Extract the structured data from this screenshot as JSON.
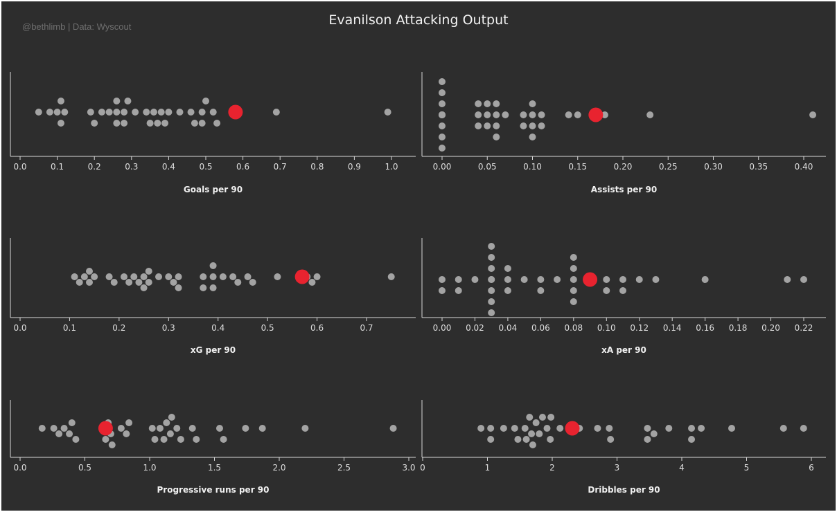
{
  "title": "Evanilson Attacking Output",
  "credit": "@bethlimb | Data: Wyscout",
  "colors": {
    "background": "#2d2d2d",
    "player_point": "#e8232f",
    "other_points": "#a3a3a3",
    "axis": "#d9d9d9",
    "text": "#f0f0f0"
  },
  "chart_data": [
    {
      "type": "scatter",
      "subtype": "beeswarm",
      "xlabel": "Goals per 90",
      "xlim": [
        0.0,
        1.0
      ],
      "ticks": [
        0.0,
        0.1,
        0.2,
        0.3,
        0.4,
        0.5,
        0.6,
        0.7,
        0.8,
        0.9,
        1.0
      ],
      "decimals": 1,
      "highlight": 0.58,
      "values": [
        0.05,
        0.08,
        0.1,
        0.11,
        0.11,
        0.12,
        0.19,
        0.2,
        0.22,
        0.24,
        0.26,
        0.26,
        0.26,
        0.28,
        0.28,
        0.29,
        0.31,
        0.34,
        0.35,
        0.36,
        0.37,
        0.38,
        0.39,
        0.4,
        0.43,
        0.46,
        0.47,
        0.49,
        0.49,
        0.5,
        0.52,
        0.53,
        0.69,
        0.99
      ]
    },
    {
      "type": "scatter",
      "subtype": "beeswarm",
      "xlabel": "Assists per 90",
      "xlim": [
        -0.015,
        0.43
      ],
      "ticks": [
        0.0,
        0.05,
        0.1,
        0.15,
        0.2,
        0.25,
        0.3,
        0.35,
        0.4
      ],
      "decimals": 2,
      "highlight": 0.17,
      "values": [
        0,
        0,
        0,
        0,
        0,
        0,
        0,
        0,
        0,
        0,
        0,
        0,
        0.04,
        0.04,
        0.04,
        0.05,
        0.05,
        0.05,
        0.06,
        0.06,
        0.06,
        0.06,
        0.07,
        0.09,
        0.09,
        0.1,
        0.1,
        0.1,
        0.1,
        0.11,
        0.11,
        0.14,
        0.15,
        0.18,
        0.23,
        0.41
      ]
    },
    {
      "type": "scatter",
      "subtype": "beeswarm",
      "xlabel": "xG per 90",
      "xlim": [
        -0.02,
        0.8
      ],
      "ticks": [
        0.0,
        0.1,
        0.2,
        0.3,
        0.4,
        0.5,
        0.6,
        0.7
      ],
      "decimals": 1,
      "highlight": 0.57,
      "values": [
        0.11,
        0.12,
        0.13,
        0.14,
        0.14,
        0.15,
        0.18,
        0.19,
        0.21,
        0.22,
        0.23,
        0.24,
        0.25,
        0.25,
        0.26,
        0.26,
        0.28,
        0.3,
        0.31,
        0.32,
        0.32,
        0.37,
        0.37,
        0.39,
        0.39,
        0.39,
        0.41,
        0.43,
        0.44,
        0.46,
        0.47,
        0.52,
        0.58,
        0.59,
        0.6,
        0.75
      ]
    },
    {
      "type": "scatter",
      "subtype": "beeswarm",
      "xlabel": "xA per 90",
      "xlim": [
        -0.013,
        0.23
      ],
      "ticks": [
        0.0,
        0.02,
        0.04,
        0.06,
        0.08,
        0.1,
        0.12,
        0.14,
        0.16,
        0.18,
        0.2,
        0.22
      ],
      "decimals": 2,
      "highlight": 0.09,
      "values": [
        0,
        0,
        0.01,
        0.01,
        0.02,
        0.03,
        0.03,
        0.03,
        0.03,
        0.03,
        0.03,
        0.03,
        0.03,
        0.04,
        0.04,
        0.04,
        0.05,
        0.06,
        0.06,
        0.07,
        0.08,
        0.08,
        0.08,
        0.08,
        0.08,
        0.1,
        0.1,
        0.11,
        0.11,
        0.12,
        0.13,
        0.16,
        0.21,
        0.22
      ]
    },
    {
      "type": "scatter",
      "subtype": "beeswarm",
      "xlabel": "Progressive runs per 90",
      "xlim": [
        -0.1,
        3.0
      ],
      "ticks": [
        0.0,
        0.5,
        1.0,
        1.5,
        2.0,
        2.5,
        3.0
      ],
      "decimals": 1,
      "highlight": 0.66,
      "values": [
        0.17,
        0.26,
        0.3,
        0.34,
        0.38,
        0.4,
        0.43,
        0.64,
        0.66,
        0.68,
        0.7,
        0.71,
        0.78,
        0.82,
        0.84,
        1.02,
        1.04,
        1.08,
        1.11,
        1.13,
        1.16,
        1.17,
        1.21,
        1.24,
        1.33,
        1.36,
        1.54,
        1.57,
        1.74,
        1.87,
        2.2,
        2.88
      ]
    },
    {
      "type": "scatter",
      "subtype": "beeswarm",
      "xlabel": "Dribbles per 90",
      "xlim": [
        0.0,
        6.25
      ],
      "ticks": [
        0,
        1,
        2,
        3,
        4,
        5,
        6
      ],
      "decimals": 0,
      "highlight": 2.31,
      "values": [
        0.9,
        1.05,
        1.05,
        1.25,
        1.42,
        1.47,
        1.58,
        1.6,
        1.65,
        1.68,
        1.7,
        1.75,
        1.8,
        1.85,
        1.92,
        1.97,
        1.98,
        2.12,
        2.42,
        2.7,
        2.88,
        2.9,
        3.47,
        3.47,
        3.57,
        3.8,
        4.15,
        4.15,
        4.3,
        4.77,
        5.57,
        5.88
      ]
    }
  ]
}
